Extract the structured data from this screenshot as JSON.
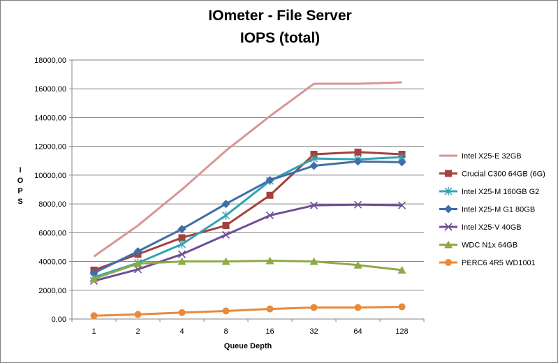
{
  "chart_data": {
    "type": "line",
    "title": "IOmeter - File Server",
    "subtitle": "IOPS (total)",
    "xlabel": "Queue Depth",
    "ylabel": "IOPS",
    "categories": [
      "1",
      "2",
      "4",
      "8",
      "16",
      "32",
      "64",
      "128"
    ],
    "ylim": [
      0,
      18000
    ],
    "yticks": [
      "0,00",
      "2000,00",
      "4000,00",
      "6000,00",
      "8000,00",
      "10000,00",
      "12000,00",
      "14000,00",
      "16000,00",
      "18000,00"
    ],
    "grid": true,
    "legend_position": "right",
    "series": [
      {
        "name": "Intel X25-E 32GB",
        "color": "#d99594",
        "marker": "none",
        "values": [
          4350,
          6500,
          9000,
          11700,
          14100,
          16350,
          16350,
          16450
        ]
      },
      {
        "name": "Crucial C300 64GB (6G)",
        "color": "#a5413e",
        "marker": "square",
        "values": [
          3400,
          4500,
          5650,
          6500,
          8600,
          11450,
          11600,
          11450
        ]
      },
      {
        "name": "Intel X25-M 160GB G2",
        "color": "#31a3b4",
        "marker": "star",
        "values": [
          2900,
          3900,
          5200,
          7200,
          9600,
          11150,
          11100,
          11250
        ]
      },
      {
        "name": "Intel X25-M G1 80GB",
        "color": "#3f6ea8",
        "marker": "diamond",
        "values": [
          3200,
          4700,
          6250,
          8000,
          9650,
          10650,
          10950,
          10900
        ]
      },
      {
        "name": "Intel X25-V 40GB",
        "color": "#6f4f95",
        "marker": "x",
        "values": [
          2650,
          3450,
          4500,
          5850,
          7200,
          7900,
          7950,
          7900
        ]
      },
      {
        "name": "WDC N1x 64GB",
        "color": "#8eaa47",
        "marker": "triangle",
        "values": [
          2800,
          3850,
          4000,
          4000,
          4050,
          4000,
          3750,
          3400
        ]
      },
      {
        "name": "PERC6 4R5 WD1001",
        "color": "#e9893a",
        "marker": "circle",
        "values": [
          230,
          320,
          450,
          560,
          700,
          800,
          800,
          850
        ]
      }
    ]
  }
}
